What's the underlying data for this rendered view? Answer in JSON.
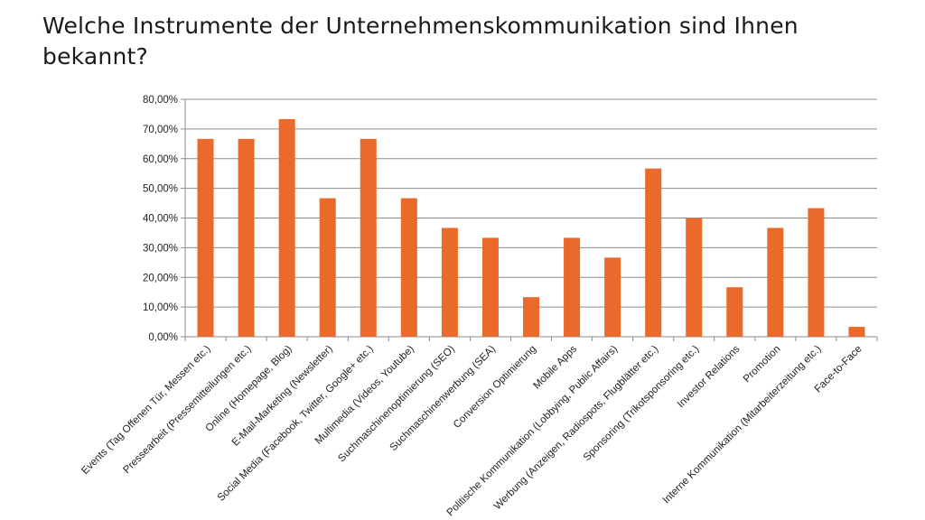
{
  "chart_data": {
    "type": "bar",
    "title": "Welche Instrumente der Unternehmenskommunikation sind Ihnen bekannt?",
    "xlabel": "",
    "ylabel": "",
    "ylim": [
      0,
      80
    ],
    "yticks": [
      "0,00%",
      "10,00%",
      "20,00%",
      "30,00%",
      "40,00%",
      "50,00%",
      "60,00%",
      "70,00%",
      "80,00%"
    ],
    "grid": true,
    "legend": "none",
    "bar_color": "#E96A2A",
    "categories": [
      "Events (Tag Offenen Tür, Messen etc.)",
      "Pressearbeit (Pressemitteilungen etc.)",
      "Online (Homepage, Blog)",
      "E-Mail-Marketing (Newsletter)",
      "Social Media (Facebook, Twitter, Google+ etc.)",
      "Multimedia (Videos, Youtube)",
      "Suchmaschinenoptimierung (SEO)",
      "Suchmaschinenwerbung  (SEA)",
      "Conversion Optimierung",
      "Mobile Apps",
      "Politische Kommunikation (Lobbying, Public Affairs)",
      "Werbung (Anzeigen, Radiospots, Flugblätter etc.)",
      "Sponsoring (Trikotsponsoring etc.)",
      "Investor Relations",
      "Promotion",
      "Interne Kommunikation (Mitarbeiterzeitung  etc.)",
      "Face-to-Face"
    ],
    "values": [
      66.67,
      66.67,
      73.33,
      46.67,
      66.67,
      46.67,
      36.67,
      33.33,
      13.33,
      33.33,
      26.67,
      56.67,
      40.0,
      16.67,
      36.67,
      43.33,
      3.33
    ]
  }
}
